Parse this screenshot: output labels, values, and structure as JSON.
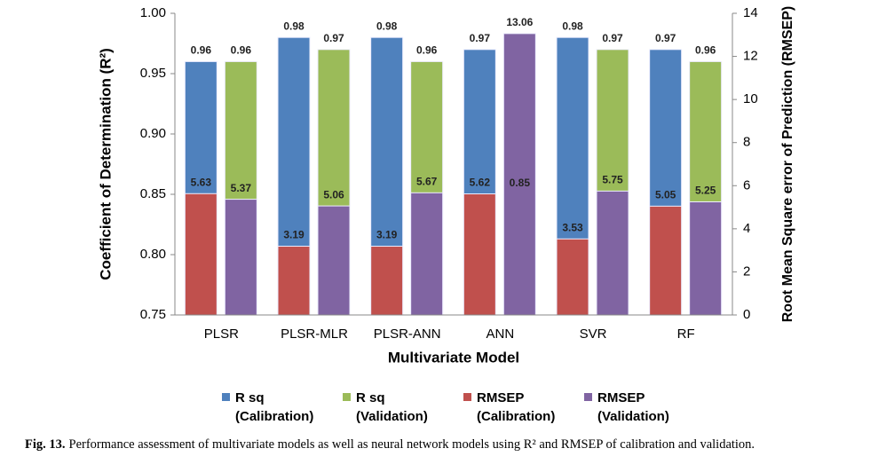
{
  "chart_data": {
    "type": "bar",
    "categories": [
      "PLSR",
      "PLSR-MLR",
      "PLSR-ANN",
      "ANN",
      "SVR",
      "RF"
    ],
    "series": [
      {
        "name": "R sq (Calibration)",
        "color": "#4f81bd",
        "values": [
          0.96,
          0.98,
          0.98,
          0.97,
          0.98,
          0.97
        ]
      },
      {
        "name": "R sq (Validation)",
        "color": "#9bbb59",
        "values": [
          0.96,
          0.97,
          0.96,
          0.85,
          0.97,
          0.96
        ]
      },
      {
        "name": "RMSEP (Calibration)",
        "color": "#c0504d",
        "axis": "y2",
        "values": [
          5.63,
          3.19,
          3.19,
          5.62,
          3.53,
          5.05
        ]
      },
      {
        "name": "RMSEP (Validation)",
        "color": "#8064a2",
        "axis": "y2",
        "values": [
          5.37,
          5.06,
          5.67,
          13.06,
          5.75,
          5.25
        ]
      }
    ],
    "ylim": [
      0.75,
      1.0
    ],
    "yticks": [
      0.75,
      {
        "value": 0.8,
        "label": "0.80"
      },
      0.85,
      {
        "value": 0.9,
        "label": "0.90"
      },
      0.95,
      {
        "value": 1.0,
        "label": "1.00"
      }
    ],
    "y2lim": [
      0,
      14
    ],
    "y2ticks": [
      0,
      2,
      4,
      6,
      8,
      10,
      12,
      14
    ],
    "ylabel": "Coefficient of Determination (R²)",
    "y2label": "Root Mean Square error of Prediction (RMSEP)",
    "xlabel": "Multivariate Model",
    "legend": "bottom",
    "caption": {
      "label": "Fig. 13.",
      "text": "Performance assessment of multivariate models as well as neural network models using R² and RMSEP of calibration and validation."
    }
  }
}
